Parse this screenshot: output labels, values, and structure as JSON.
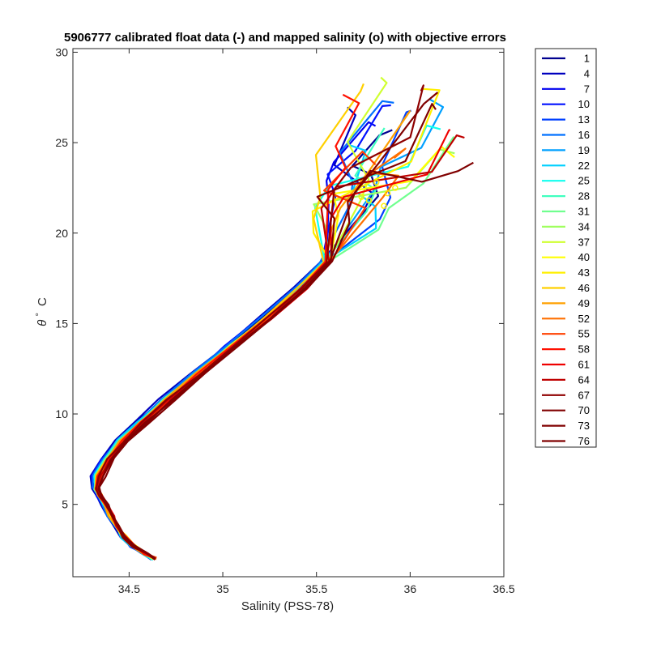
{
  "chart_data": {
    "type": "line",
    "title": "5906777 calibrated float data (-) and mapped salinity (o) with objective errors",
    "xlabel": "Salinity (PSS-78)",
    "ylabel_symbol": "θ",
    "ylabel_degree": "°",
    "ylabel_unit": "C",
    "xlim": [
      34.2,
      36.5
    ],
    "ylim": [
      1,
      30.2
    ],
    "xticks": [
      34.5,
      35,
      35.5,
      36,
      36.5
    ],
    "xtick_labels": [
      "34.5",
      "35",
      "35.5",
      "36",
      "36.5"
    ],
    "yticks": [
      5,
      10,
      15,
      20,
      25,
      30
    ],
    "ytick_labels": [
      "5",
      "10",
      "15",
      "20",
      "25",
      "30"
    ],
    "grid": false,
    "legend_position": "outside-right",
    "colormap": "jet",
    "series_names": [
      "1",
      "4",
      "7",
      "10",
      "13",
      "16",
      "19",
      "22",
      "25",
      "28",
      "31",
      "34",
      "37",
      "40",
      "43",
      "46",
      "49",
      "52",
      "55",
      "58",
      "61",
      "64",
      "67",
      "70",
      "73",
      "76"
    ],
    "series_colors": [
      "#00008F",
      "#0000BF",
      "#0000EF",
      "#0010FF",
      "#0040FF",
      "#0070FF",
      "#00A0FF",
      "#00D0FF",
      "#10FFEF",
      "#40FFBF",
      "#70FF8F",
      "#A0FF60",
      "#CFFF30",
      "#FFFF00",
      "#FFEF00",
      "#FFD000",
      "#FFA000",
      "#FF7000",
      "#FF4000",
      "#FF1000",
      "#EF0000",
      "#BF0000",
      "#8F0000",
      "#800000",
      "#800000",
      "#800000"
    ],
    "base_profile": {
      "s": [
        34.63,
        34.58,
        34.52,
        34.47,
        34.43,
        34.4,
        34.37,
        34.34,
        34.32,
        34.33,
        34.38,
        34.46,
        34.56,
        34.7,
        34.86,
        35.04,
        35.23,
        35.42,
        35.55
      ],
      "t": [
        2.0,
        2.3,
        2.7,
        3.2,
        3.8,
        4.4,
        5.0,
        5.5,
        5.9,
        6.6,
        7.5,
        8.5,
        9.5,
        10.8,
        12.2,
        13.7,
        15.3,
        17.0,
        18.4
      ]
    },
    "mapped_points": {
      "s": [
        35.86,
        35.88,
        35.82,
        35.78,
        35.92,
        35.74
      ],
      "t": [
        21.5,
        22.2,
        22.8,
        21.8,
        22.5,
        22.0
      ]
    }
  },
  "legend": {
    "labels": [
      "1",
      "4",
      "7",
      "10",
      "13",
      "16",
      "19",
      "22",
      "25",
      "28",
      "31",
      "34",
      "37",
      "40",
      "43",
      "46",
      "49",
      "52",
      "55",
      "58",
      "61",
      "64",
      "67",
      "70",
      "73",
      "76"
    ]
  }
}
